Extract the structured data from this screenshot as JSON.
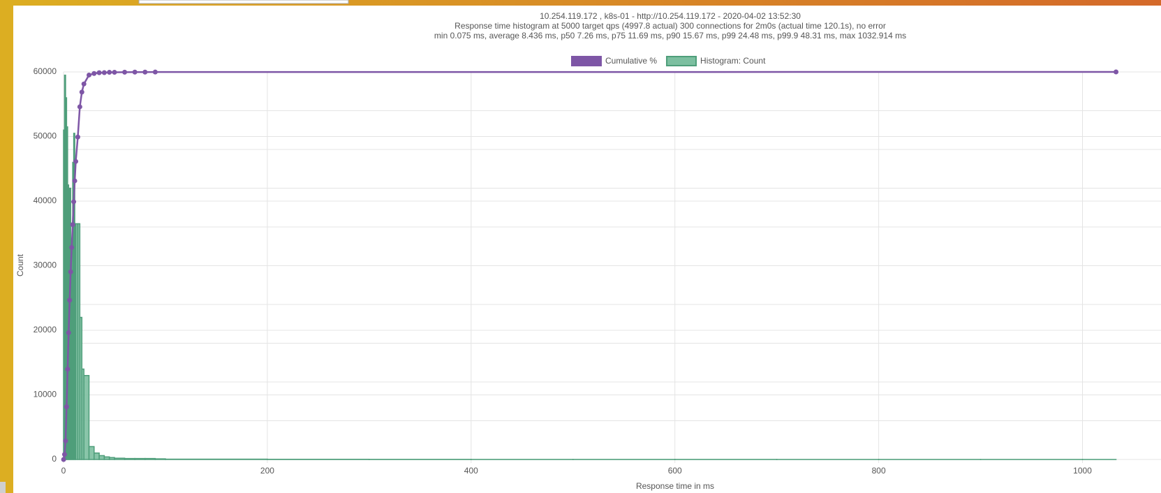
{
  "chart_data": {
    "type": "histogram",
    "title_lines": [
      "10.254.119.172 , k8s-01 - http://10.254.119.172 - 2020-04-02 13:52:30",
      "Response time histogram at 5000 target qps (4997.8 actual) 300 connections for 2m0s (actual time 120.1s), no error",
      "min 0.075 ms, average 8.436 ms, p50 7.26 ms, p75 11.69 ms, p90 15.67 ms, p99 24.48 ms, p99.9 48.31 ms, max 1032.914 ms"
    ],
    "x_label": "Response time in ms",
    "y_label": "Count",
    "xlim": [
      0,
      1075
    ],
    "xticks": [
      0,
      200,
      400,
      600,
      800,
      1000
    ],
    "ylim": [
      0,
      60000
    ],
    "yticks": [
      0,
      10000,
      20000,
      30000,
      40000,
      50000,
      60000
    ],
    "y2lim": [
      0,
      100
    ],
    "y2ticks": [
      0,
      10,
      20,
      30,
      40,
      50,
      60,
      70,
      80,
      90,
      100
    ],
    "grid": true,
    "legend": "top",
    "cumulative": {
      "name": "Cumulative %",
      "color": "#7e56a6",
      "axis": "y2",
      "x": [
        0.075,
        1,
        2,
        3,
        4,
        5,
        6,
        7,
        8,
        9,
        10,
        11,
        12,
        14,
        16,
        18,
        20,
        25,
        30,
        35,
        40,
        45,
        50,
        60,
        70,
        80,
        90,
        1032.914
      ],
      "values": [
        0,
        1.3,
        4.8,
        13.6,
        23.3,
        32.7,
        41.1,
        48.4,
        54.7,
        60.6,
        66.5,
        71.9,
        76.9,
        83.2,
        91.0,
        94.8,
        96.9,
        99.2,
        99.6,
        99.8,
        99.81,
        99.9,
        99.9,
        99.93,
        99.95,
        99.96,
        99.97,
        100
      ]
    },
    "histogram": {
      "name": "Histogram: Count",
      "color": "#7cbfa0",
      "edge_color": "#4e9e7a",
      "bins": [
        0,
        1,
        2,
        3,
        4,
        5,
        6,
        7,
        8,
        9,
        10,
        11,
        12,
        14,
        16,
        18,
        20,
        25,
        30,
        35,
        40,
        45,
        50,
        60,
        70,
        80,
        90,
        100,
        200,
        300,
        400,
        500,
        600,
        700,
        800,
        900,
        1000,
        1032.914
      ],
      "counts": [
        51000,
        59500,
        56000,
        51500,
        42500,
        38000,
        42000,
        34000,
        29000,
        46000,
        50500,
        36500,
        36500,
        36500,
        22000,
        14000,
        13000,
        2000,
        1000,
        600,
        400,
        300,
        200,
        150,
        150,
        150,
        100,
        50,
        30,
        20,
        10,
        10,
        10,
        5,
        5,
        5,
        3
      ]
    }
  }
}
